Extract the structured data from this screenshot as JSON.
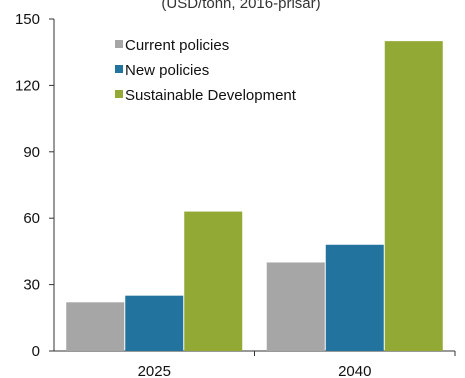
{
  "chart_data": {
    "type": "bar",
    "subtitle": "(USD/tonn, 2016-prisar)",
    "categories": [
      "2025",
      "2040"
    ],
    "series": [
      {
        "name": "Current policies",
        "values": [
          22,
          40
        ],
        "color": "#a6a6a6"
      },
      {
        "name": "New policies",
        "values": [
          25,
          48
        ],
        "color": "#23739f"
      },
      {
        "name": "Sustainable Development",
        "values": [
          63,
          140
        ],
        "color": "#92a935"
      }
    ],
    "ylim": [
      0,
      150
    ],
    "yticks": [
      0,
      30,
      60,
      90,
      120,
      150
    ],
    "grid": false,
    "legend": "top-left"
  }
}
